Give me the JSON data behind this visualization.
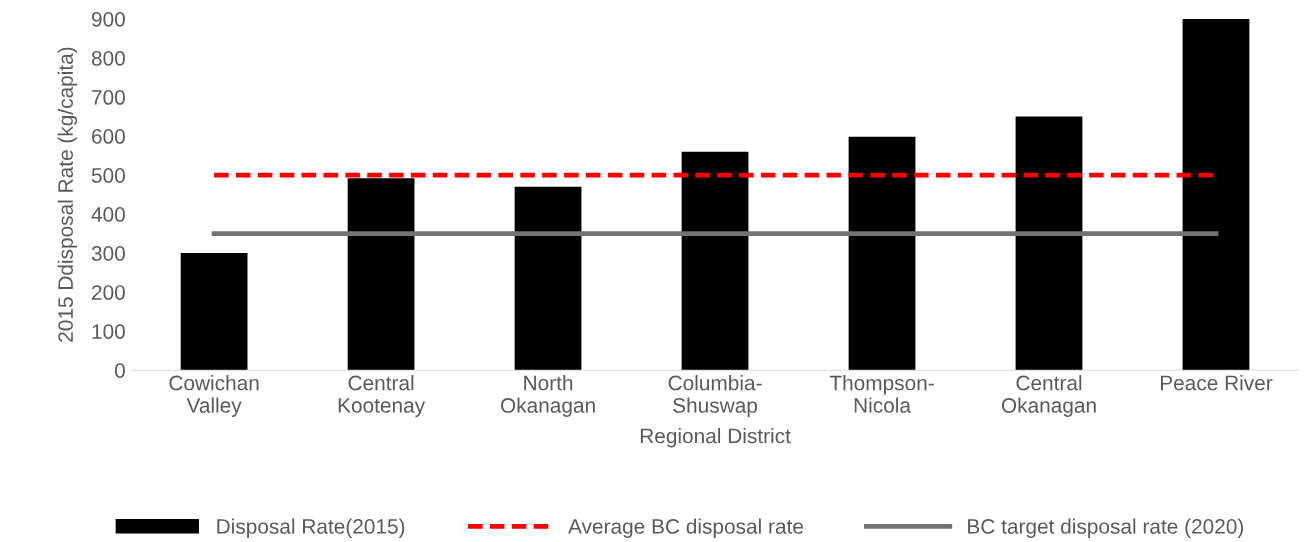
{
  "chart_data": {
    "type": "bar",
    "xlabel": "Regional District",
    "ylabel": "2015 Ddisposal Rate (kg/capita)",
    "categories": [
      "Cowichan\nValley",
      "Central\nKootenay",
      "North\nOkanagan",
      "Columbia-\nShuswap",
      "Thompson-\nNicola",
      "Central\nOkanagan",
      "Peace River"
    ],
    "series": [
      {
        "name": "Disposal Rate(2015)",
        "color": "#000000",
        "values": [
          300,
          492,
          470,
          560,
          598,
          650,
          900
        ]
      },
      {
        "name": "Average BC disposal rate",
        "type": "line",
        "color": "#ff0000",
        "line_style": "dashed",
        "values": [
          500,
          500,
          500,
          500,
          500,
          500,
          500
        ]
      },
      {
        "name": "BC target disposal rate (2020)",
        "type": "line",
        "color": "#767171",
        "line_style": "solid",
        "values": [
          350,
          350,
          350,
          350,
          350,
          350,
          350
        ]
      }
    ],
    "ylim": [
      0,
      900
    ],
    "yticks": [
      0,
      100,
      200,
      300,
      400,
      500,
      600,
      700,
      800,
      900
    ],
    "grid": false,
    "legend": "bottom",
    "marker": "none"
  }
}
